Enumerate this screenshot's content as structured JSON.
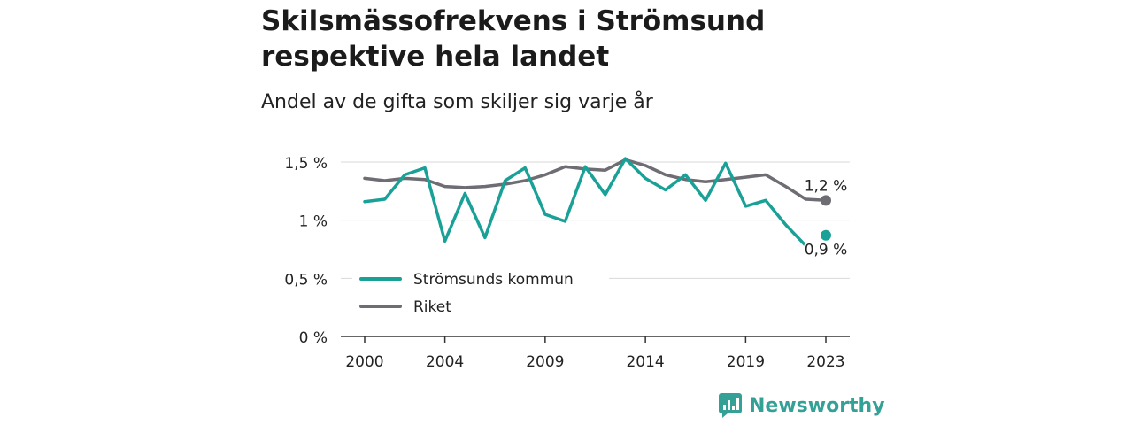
{
  "title": "Skilsmässofrekvens i Strömsund respektive hela landet",
  "subtitle": "Andel av de gifta som skiljer sig varje år",
  "brand": {
    "name": "Newsworthy",
    "icon": "newsworthy-logo-icon",
    "color": "#34a197"
  },
  "chart_data": {
    "type": "line",
    "title": "Skilsmässofrekvens i Strömsund respektive hela landet",
    "subtitle": "Andel av de gifta som skiljer sig varje år",
    "x": [
      2000,
      2001,
      2002,
      2003,
      2004,
      2005,
      2006,
      2007,
      2008,
      2009,
      2010,
      2011,
      2012,
      2013,
      2014,
      2015,
      2016,
      2017,
      2018,
      2019,
      2020,
      2021,
      2022,
      2023
    ],
    "x_ticks": [
      2000,
      2004,
      2009,
      2014,
      2019,
      2023
    ],
    "x_tick_labels": [
      "2000",
      "2004",
      "2009",
      "2014",
      "2019",
      "2023"
    ],
    "xlim": [
      2000,
      2023
    ],
    "y_ticks": [
      0,
      0.5,
      1,
      1.5
    ],
    "y_tick_labels": [
      "0 %",
      "0,5 %",
      "1 %",
      "1,5 %"
    ],
    "ylim": [
      0,
      1.5
    ],
    "grid": true,
    "legend_position": "bottom-left",
    "series": [
      {
        "name": "Strömsunds kommun",
        "color": "#1aa197",
        "values": [
          1.16,
          1.18,
          1.39,
          1.45,
          0.82,
          1.23,
          0.85,
          1.34,
          1.45,
          1.05,
          0.99,
          1.46,
          1.22,
          1.53,
          1.36,
          1.26,
          1.39,
          1.17,
          1.49,
          1.12,
          1.17,
          0.96,
          0.78,
          0.87
        ],
        "gap_before_last": true,
        "end_label": "0,9 %"
      },
      {
        "name": "Riket",
        "color": "#6e6d73",
        "values": [
          1.36,
          1.34,
          1.36,
          1.35,
          1.29,
          1.28,
          1.29,
          1.31,
          1.34,
          1.39,
          1.46,
          1.44,
          1.43,
          1.52,
          1.47,
          1.39,
          1.35,
          1.33,
          1.35,
          1.37,
          1.39,
          1.29,
          1.18,
          1.17
        ],
        "gap_before_last": false,
        "end_label": "1,2 %"
      }
    ]
  }
}
